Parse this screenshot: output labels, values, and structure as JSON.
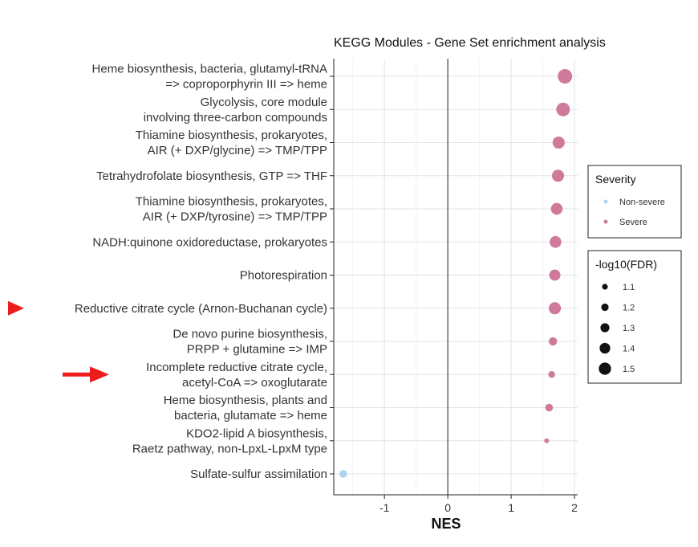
{
  "chart_data": {
    "type": "scatter",
    "title": "KEGG Modules - Gene Set enrichment analysis",
    "xlabel": "NES",
    "ylabel": "",
    "xlim": [
      -1.8,
      2.05
    ],
    "xticks": [
      "-1",
      "0",
      "1",
      "2"
    ],
    "xtick_values": [
      -1,
      0,
      1,
      2
    ],
    "grid": true,
    "vertical_reference_line": 0,
    "categories": [
      "Heme biosynthesis, bacteria, glutamyl-tRNA\n=> coproporphyrin III => heme",
      "Glycolysis, core module\ninvolving three-carbon compounds",
      "Thiamine biosynthesis, prokaryotes,\nAIR (+ DXP/glycine) => TMP/TPP",
      "Tetrahydrofolate biosynthesis, GTP => THF",
      "Thiamine biosynthesis, prokaryotes,\nAIR (+ DXP/tyrosine) => TMP/TPP",
      "NADH:quinone oxidoreductase, prokaryotes",
      "Photorespiration",
      "Reductive citrate cycle (Arnon-Buchanan cycle)",
      "De novo purine biosynthesis,\nPRPP + glutamine => IMP",
      "Incomplete reductive citrate cycle,\nacetyl-CoA => oxoglutarate",
      "Heme biosynthesis, plants and\nbacteria, glutamate => heme",
      "KDO2-lipid A biosynthesis,\nRaetz pathway, non-LpxL-LpxM type",
      "Sulfate-sulfur assimilation"
    ],
    "points": [
      {
        "nes": 1.85,
        "fdr": 1.5,
        "severity": "Severe"
      },
      {
        "nes": 1.82,
        "fdr": 1.46,
        "severity": "Severe"
      },
      {
        "nes": 1.75,
        "fdr": 1.38,
        "severity": "Severe"
      },
      {
        "nes": 1.74,
        "fdr": 1.38,
        "severity": "Severe"
      },
      {
        "nes": 1.72,
        "fdr": 1.36,
        "severity": "Severe"
      },
      {
        "nes": 1.7,
        "fdr": 1.36,
        "severity": "Severe"
      },
      {
        "nes": 1.69,
        "fdr": 1.33,
        "severity": "Severe"
      },
      {
        "nes": 1.69,
        "fdr": 1.38,
        "severity": "Severe"
      },
      {
        "nes": 1.66,
        "fdr": 1.18,
        "severity": "Severe"
      },
      {
        "nes": 1.64,
        "fdr": 1.1,
        "severity": "Severe"
      },
      {
        "nes": 1.6,
        "fdr": 1.15,
        "severity": "Severe"
      },
      {
        "nes": 1.56,
        "fdr": 1.0,
        "severity": "Severe"
      },
      {
        "nes": -1.65,
        "fdr": 1.15,
        "severity": "Non-severe"
      }
    ],
    "legend": {
      "placement": "right",
      "severity": {
        "title": "Severity",
        "entries": [
          {
            "label": "Non-severe",
            "color": "#aed3ea"
          },
          {
            "label": "Severe",
            "color": "#cf7a9a"
          }
        ]
      },
      "size": {
        "title": "-log10(FDR)",
        "entries": [
          "1.1",
          "1.2",
          "1.3",
          "1.4",
          "1.5"
        ],
        "values": [
          1.1,
          1.2,
          1.3,
          1.4,
          1.5
        ]
      }
    },
    "highlighted_categories": [
      7,
      9
    ],
    "arrow_color": "#ee1c1c"
  }
}
